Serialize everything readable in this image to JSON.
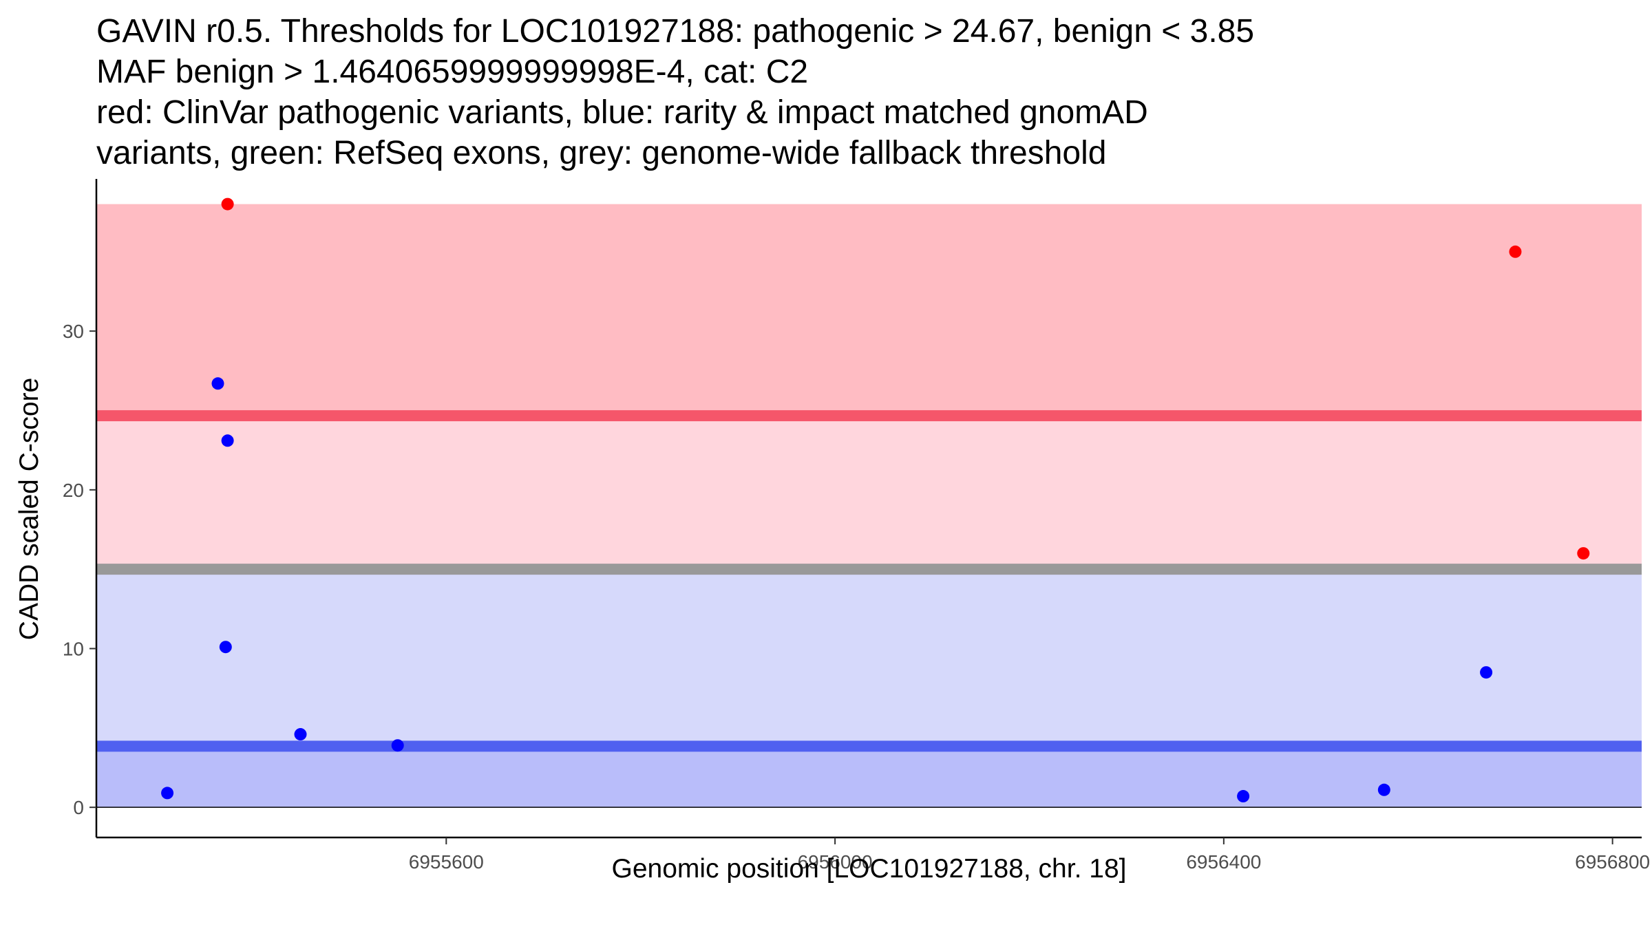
{
  "chart_data": {
    "type": "scatter",
    "title_lines": [
      "GAVIN r0.5. Thresholds for LOC101927188: pathogenic > 24.67, benign < 3.85",
      "MAF benign > 1.4640659999999998E-4, cat: C2",
      "red: ClinVar pathogenic variants, blue: rarity & impact matched gnomAD",
      "variants, green: RefSeq exons, grey: genome-wide fallback threshold"
    ],
    "xlabel": "Genomic position [LOC101927188, chr. 18]",
    "ylabel": "CADD scaled C-score",
    "xlim": [
      6955240,
      6956830
    ],
    "ylim": [
      -1.9,
      39.5
    ],
    "xticks": [
      6955600,
      6956000,
      6956400,
      6956800
    ],
    "yticks": [
      0,
      10,
      20,
      30
    ],
    "grid": false,
    "legend": "none",
    "bands": [
      {
        "name": "pathogenic-region",
        "y0": 24.67,
        "y1": 38,
        "color": "#ffbcc3"
      },
      {
        "name": "intermediate-region",
        "y0": 15,
        "y1": 24.67,
        "color": "#ffd6dd"
      },
      {
        "name": "benign-upper-region",
        "y0": 3.85,
        "y1": 15,
        "color": "#d6d9fb"
      },
      {
        "name": "benign-lower-region",
        "y0": 0,
        "y1": 3.85,
        "color": "#b9bdfa"
      }
    ],
    "threshold_lines": [
      {
        "name": "pathogenic-threshold",
        "y": 24.67,
        "color": "#f5566a"
      },
      {
        "name": "fallback-threshold",
        "y": 15,
        "color": "#999999"
      },
      {
        "name": "benign-threshold",
        "y": 3.85,
        "color": "#5060f0"
      }
    ],
    "series": [
      {
        "color": "#ff0000",
        "points": [
          {
            "x": 6955375,
            "y": 38.0
          },
          {
            "x": 6956700,
            "y": 35.0
          },
          {
            "x": 6956770,
            "y": 16.0
          }
        ]
      },
      {
        "color": "#0000ff",
        "points": [
          {
            "x": 6955313,
            "y": 0.9
          },
          {
            "x": 6955365,
            "y": 26.7
          },
          {
            "x": 6955375,
            "y": 23.1
          },
          {
            "x": 6955373,
            "y": 10.1
          },
          {
            "x": 6955450,
            "y": 4.6
          },
          {
            "x": 6955550,
            "y": 3.9
          },
          {
            "x": 6956420,
            "y": 0.7
          },
          {
            "x": 6956565,
            "y": 1.1
          },
          {
            "x": 6956670,
            "y": 8.5
          }
        ]
      }
    ]
  }
}
